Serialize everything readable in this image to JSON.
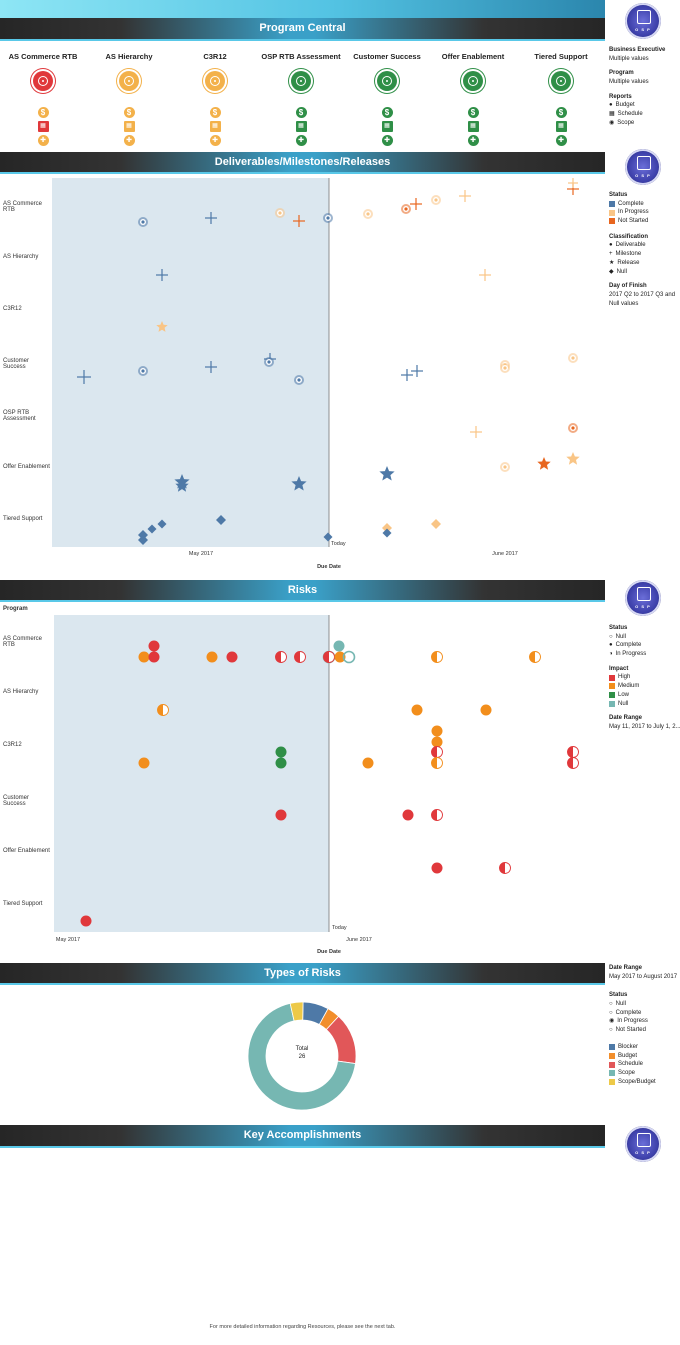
{
  "sections": {
    "program_central": "Program Central",
    "deliverables": "Deliverables/Milestones/Releases",
    "risks": "Risks",
    "types_of_risks": "Types of Risks",
    "key_accomplishments": "Key Accomplishments"
  },
  "logo_text": "O S P",
  "programs": [
    {
      "name": "AS Commerce RTB",
      "status_color": "#e0383b",
      "icons": [
        "#f3b14a",
        "#e0383b",
        "#f3b14a"
      ]
    },
    {
      "name": "AS Hierarchy",
      "status_color": "#f3b14a",
      "icons": [
        "#f3b14a",
        "#f3b14a",
        "#f3b14a"
      ]
    },
    {
      "name": "C3R12",
      "status_color": "#f3b14a",
      "icons": [
        "#f3b14a",
        "#f3b14a",
        "#f3b14a"
      ]
    },
    {
      "name": "OSP RTB Assessment",
      "status_color": "#2f8f47",
      "icons": [
        "#2f8f47",
        "#2f8f47",
        "#2f8f47"
      ]
    },
    {
      "name": "Customer Success",
      "status_color": "#2f8f47",
      "icons": [
        "#2f8f47",
        "#2f8f47",
        "#2f8f47"
      ]
    },
    {
      "name": "Offer Enablement",
      "status_color": "#2f8f47",
      "icons": [
        "#2f8f47",
        "#2f8f47",
        "#2f8f47"
      ]
    },
    {
      "name": "Tiered Support",
      "status_color": "#2f8f47",
      "icons": [
        "#2f8f47",
        "#2f8f47",
        "#2f8f47"
      ]
    }
  ],
  "filters": {
    "business_executive_label": "Business Executive",
    "business_executive_value": "Multiple values",
    "program_label": "Program",
    "program_value": "Multiple values",
    "reports_label": "Reports",
    "reports": [
      "Budget",
      "Schedule",
      "Scope"
    ]
  },
  "deliverables_legend": {
    "status_label": "Status",
    "status": [
      {
        "label": "Complete",
        "color": "#4e79a7"
      },
      {
        "label": "In Progress",
        "color": "#f9c586"
      },
      {
        "label": "Not Started",
        "color": "#e8661f"
      }
    ],
    "classification_label": "Classification",
    "classification": [
      "Deliverable",
      "Milestone",
      "Release",
      "Null"
    ],
    "day_label": "Day of Finish",
    "day_value": "2017 Q2 to 2017 Q3 and Null values"
  },
  "deliverables_chart": {
    "rows": [
      "AS Commerce RTB",
      "AS Hierarchy",
      "C3R12",
      "Customer Success",
      "OSP RTB Assessment",
      "Offer Enablement",
      "Tiered Support"
    ],
    "x_ticks": [
      "May 2017",
      "June 2017"
    ],
    "today_label": "Today",
    "xlabel": "Due Date"
  },
  "risks_legend": {
    "status_label": "Status",
    "status": [
      "Null",
      "Complete",
      "In Progress"
    ],
    "impact_label": "Impact",
    "impact": [
      {
        "label": "High",
        "color": "#e0383b"
      },
      {
        "label": "Medium",
        "color": "#f28e1c"
      },
      {
        "label": "Low",
        "color": "#2f8f47"
      },
      {
        "label": "Null",
        "color": "#76b7b2"
      }
    ],
    "date_label": "Date Range",
    "date_value": "May 11, 2017 to July 1, 2..."
  },
  "risks_chart": {
    "ylabel": "Program",
    "rows": [
      "AS Commerce RTB",
      "AS Hierarchy",
      "C3R12",
      "Customer Success",
      "Offer Enablement",
      "Tiered Support"
    ],
    "x_ticks": [
      "May 2017",
      "June 2017"
    ],
    "today_label": "Today",
    "xlabel": "Due Date"
  },
  "types_legend": {
    "date_label": "Date Range",
    "date_value": "May 2017 to August 2017",
    "status_label": "Status",
    "status": [
      "Null",
      "Complete",
      "In Progress",
      "Not Started"
    ],
    "categories": [
      {
        "label": "Blocker",
        "color": "#4e79a7"
      },
      {
        "label": "Budget",
        "color": "#f28e2b"
      },
      {
        "label": "Schedule",
        "color": "#e15759"
      },
      {
        "label": "Scope",
        "color": "#76b7b2"
      },
      {
        "label": "Scope/Budget",
        "color": "#edc948"
      }
    ]
  },
  "chart_data": {
    "type": "pie",
    "title": "Types of Risks",
    "center_label": "Total",
    "center_value": "26",
    "categories": [
      "Blocker",
      "Budget",
      "Schedule",
      "Scope",
      "Scope/Budget"
    ],
    "values": [
      2,
      1,
      4,
      18,
      1
    ],
    "colors": [
      "#4e79a7",
      "#f28e2b",
      "#e15759",
      "#76b7b2",
      "#edc948"
    ]
  },
  "footer": "For more detailed  information regarding Resources, please see the next tab."
}
